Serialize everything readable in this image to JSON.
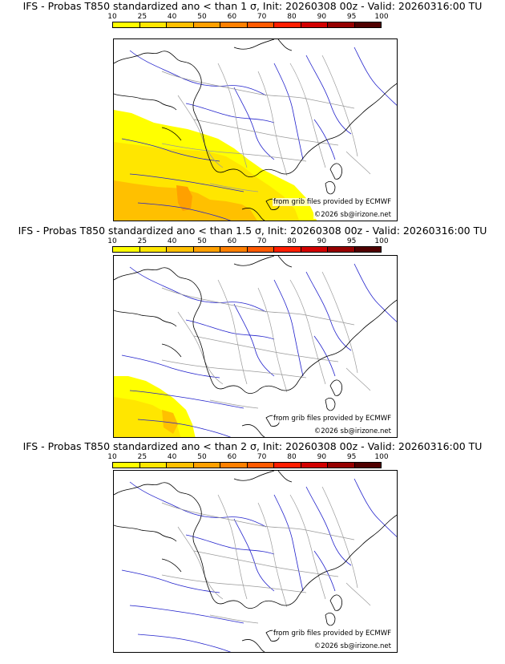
{
  "colorbar": {
    "ticks": [
      "10",
      "25",
      "40",
      "50",
      "60",
      "70",
      "80",
      "90",
      "95",
      "100"
    ],
    "colors": [
      "#ffff00",
      "#ffe600",
      "#ffc000",
      "#ffa000",
      "#ff8000",
      "#ff5a00",
      "#ff1e00",
      "#d20000",
      "#960000",
      "#500000"
    ]
  },
  "panels": [
    {
      "title": "IFS - Probas T850  standardized ano < than 1 σ, Init: 20260308 00z - Valid: 20260316:00 TU",
      "credit_source": "from grib files provided by ECMWF",
      "credit_copyright": "©2026 sb@irizone.net"
    },
    {
      "title": "IFS - Probas T850  standardized ano < than 1.5 σ, Init: 20260308 00z - Valid: 20260316:00 TU",
      "credit_source": "from grib files provided by ECMWF",
      "credit_copyright": "©2026 sb@irizone.net"
    },
    {
      "title": "IFS - Probas T850  standardized ano < than 2 σ, Init: 20260308 00z - Valid: 20260316:00 TU",
      "credit_source": "from grib files provided by ECMWF",
      "credit_copyright": "©2026 sb@irizone.net"
    }
  ],
  "map_colors": {
    "coastline": "#000000",
    "rivers": "#2222cc",
    "borders": "#9a9a9a"
  }
}
